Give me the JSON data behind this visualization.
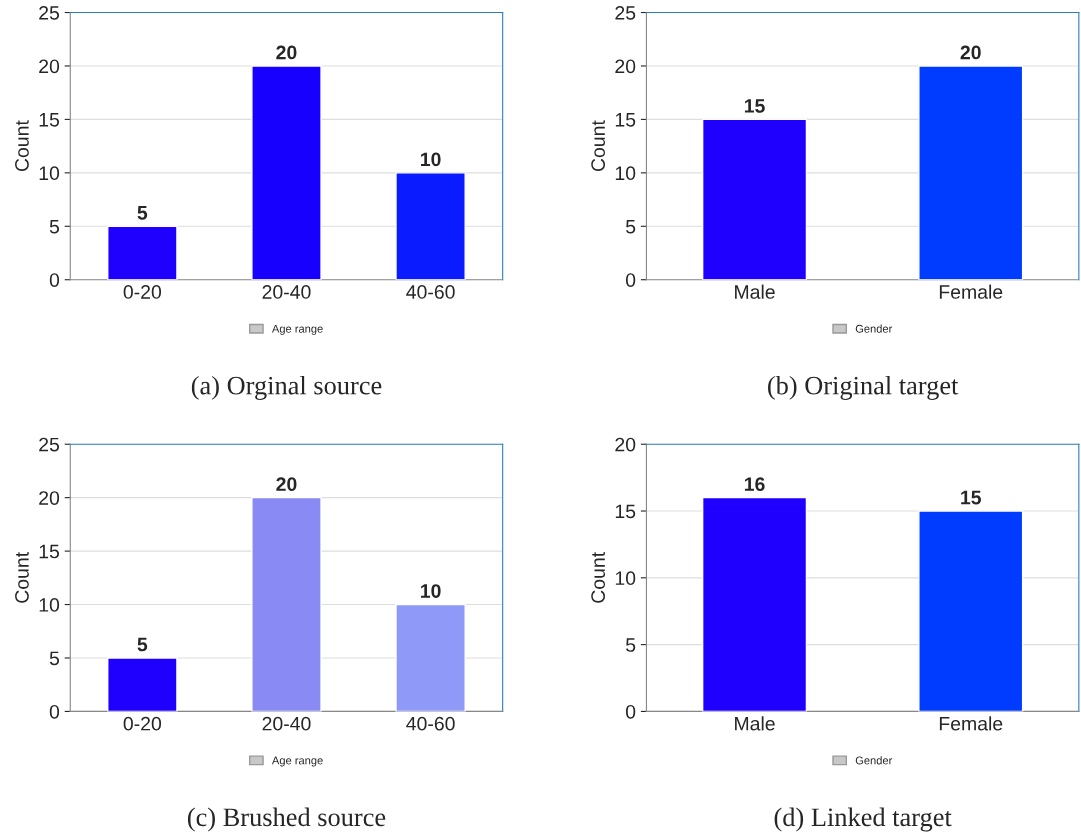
{
  "chart_data": [
    {
      "type": "bar",
      "title": "(a) Orginal source",
      "ylabel": "Count",
      "categories": [
        "0-20",
        "20-40",
        "40-60"
      ],
      "series": [
        {
          "name": "Age range",
          "color": "#c8c8c8",
          "colors": [
            "#1f00ff",
            "#1800ff",
            "#0a1cff"
          ],
          "values": [
            5,
            20,
            10
          ]
        }
      ],
      "ylim": [
        0,
        25
      ],
      "yticks": [
        0,
        5,
        10,
        15,
        20,
        25
      ],
      "grid": "y",
      "legend": "bottom",
      "data_labels": true
    },
    {
      "type": "bar",
      "title": "(b) Original target",
      "ylabel": "Count",
      "categories": [
        "Male",
        "Female"
      ],
      "series": [
        {
          "name": "Gender",
          "color": "#c8c8c8",
          "colors": [
            "#1f00ff",
            "#003cff"
          ],
          "values": [
            15,
            20
          ]
        }
      ],
      "ylim": [
        0,
        25
      ],
      "yticks": [
        0,
        5,
        10,
        15,
        20,
        25
      ],
      "grid": "y",
      "legend": "bottom",
      "data_labels": true
    },
    {
      "type": "bar",
      "title": "(c) Brushed source",
      "ylabel": "Count",
      "categories": [
        "0-20",
        "20-40",
        "40-60"
      ],
      "series": [
        {
          "name": "Age range",
          "color": "#c8c8c8",
          "colors": [
            "#1f00ff",
            "#8a8af5",
            "#8f99f8"
          ],
          "values": [
            5,
            20,
            10
          ]
        }
      ],
      "ylim": [
        0,
        25
      ],
      "yticks": [
        0,
        5,
        10,
        15,
        20,
        25
      ],
      "grid": "y",
      "legend": "bottom",
      "data_labels": true
    },
    {
      "type": "bar",
      "title": "(d) Linked target",
      "ylabel": "Count",
      "categories": [
        "Male",
        "Female"
      ],
      "series": [
        {
          "name": "Gender",
          "color": "#c8c8c8",
          "colors": [
            "#1f00ff",
            "#003cff"
          ],
          "values": [
            16,
            15
          ]
        }
      ],
      "ylim": [
        0,
        20
      ],
      "yticks": [
        0,
        5,
        10,
        15,
        20
      ],
      "grid": "y",
      "legend": "bottom",
      "data_labels": true
    }
  ]
}
